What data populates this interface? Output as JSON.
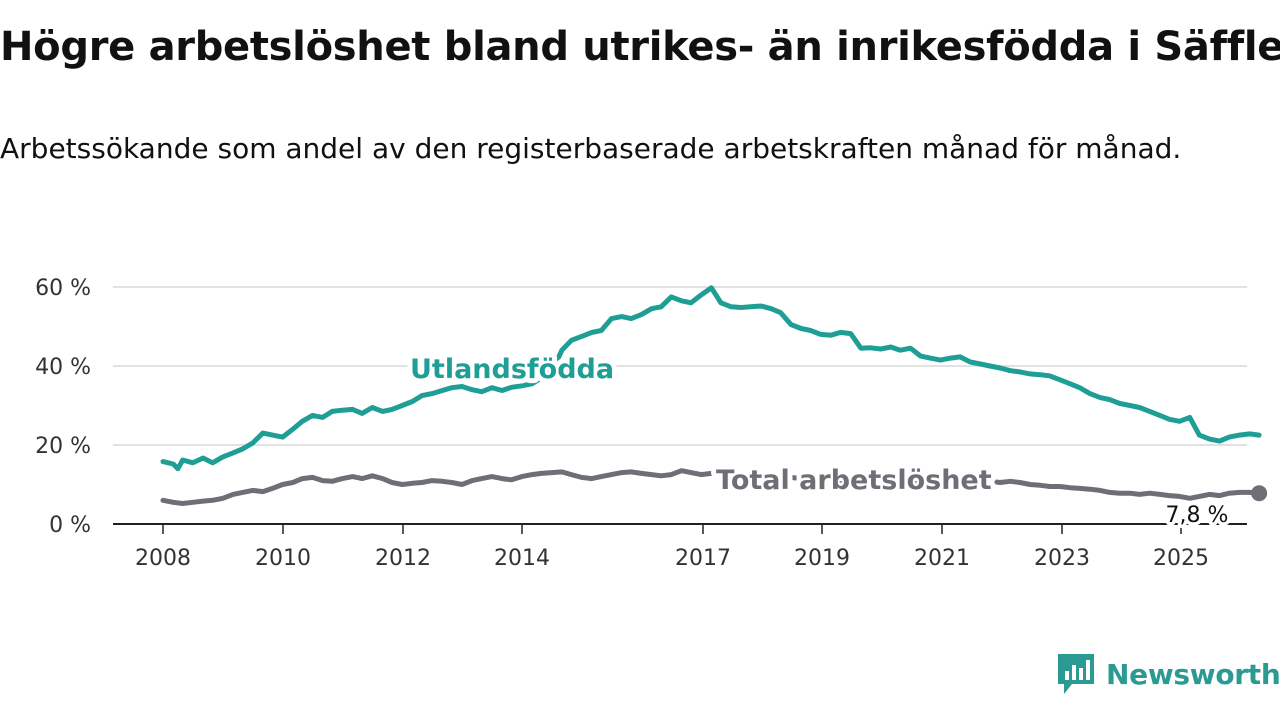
{
  "header": {
    "title": "Högre arbetslöshet bland utrikes- än inrikesfödda i Säffle",
    "subtitle": "Arbetssökande som andel av den registerbaserade arbetskraften månad för månad."
  },
  "brand": {
    "name": "Newsworthy",
    "icon": "newsworthy-logo-icon"
  },
  "colors": {
    "utlandsfodda": "#1f9e96",
    "total": "#6e6e76",
    "grid": "#d9d9d9",
    "axis": "#222222"
  },
  "chart_data": {
    "type": "line",
    "x_ticks": [
      "2008",
      "2010",
      "2012",
      "2014",
      "2017",
      "2019",
      "2021",
      "2023",
      "2025"
    ],
    "y_ticks": [
      "0 %",
      "20 %",
      "40 %",
      "60 %"
    ],
    "ylim": [
      0,
      60
    ],
    "xlim": [
      2007.6,
      2026.5
    ],
    "grid": true,
    "series": [
      {
        "name": "Utlandsfödda",
        "color": "#1f9e96",
        "points": [
          [
            2008.0,
            15.8
          ],
          [
            2008.17,
            15.2
          ],
          [
            2008.25,
            14.0
          ],
          [
            2008.33,
            16.2
          ],
          [
            2008.5,
            15.5
          ],
          [
            2008.67,
            16.7
          ],
          [
            2008.83,
            15.5
          ],
          [
            2009.0,
            17.0
          ],
          [
            2009.17,
            18.0
          ],
          [
            2009.33,
            19.0
          ],
          [
            2009.5,
            20.5
          ],
          [
            2009.67,
            23.0
          ],
          [
            2009.83,
            22.5
          ],
          [
            2010.0,
            22.0
          ],
          [
            2010.17,
            24.0
          ],
          [
            2010.33,
            26.0
          ],
          [
            2010.5,
            27.5
          ],
          [
            2010.67,
            27.0
          ],
          [
            2010.83,
            28.5
          ],
          [
            2011.0,
            28.8
          ],
          [
            2011.17,
            29.0
          ],
          [
            2011.33,
            28.0
          ],
          [
            2011.5,
            29.5
          ],
          [
            2011.67,
            28.5
          ],
          [
            2011.83,
            29.0
          ],
          [
            2012.0,
            30.0
          ],
          [
            2012.17,
            31.0
          ],
          [
            2012.33,
            32.5
          ],
          [
            2012.5,
            33.0
          ],
          [
            2012.67,
            33.8
          ],
          [
            2012.83,
            34.5
          ],
          [
            2013.0,
            34.8
          ],
          [
            2013.17,
            34.0
          ],
          [
            2013.33,
            33.5
          ],
          [
            2013.5,
            34.5
          ],
          [
            2013.67,
            33.8
          ],
          [
            2013.83,
            34.6
          ],
          [
            2014.0,
            35.0
          ],
          [
            2014.17,
            35.5
          ],
          [
            2014.33,
            37.0
          ],
          [
            2014.5,
            38.5
          ],
          [
            2014.67,
            44.0
          ],
          [
            2014.83,
            46.5
          ],
          [
            2015.0,
            47.5
          ],
          [
            2015.17,
            48.5
          ],
          [
            2015.33,
            49.0
          ],
          [
            2015.5,
            52.0
          ],
          [
            2015.67,
            52.5
          ],
          [
            2015.83,
            52.0
          ],
          [
            2016.0,
            53.0
          ],
          [
            2016.17,
            54.5
          ],
          [
            2016.33,
            55.0
          ],
          [
            2016.5,
            57.5
          ],
          [
            2016.67,
            56.5
          ],
          [
            2016.83,
            56.0
          ],
          [
            2017.0,
            58.0
          ],
          [
            2017.17,
            59.8
          ],
          [
            2017.33,
            56.0
          ],
          [
            2017.5,
            55.0
          ],
          [
            2017.67,
            54.8
          ],
          [
            2017.83,
            55.0
          ],
          [
            2018.0,
            55.2
          ],
          [
            2018.17,
            54.5
          ],
          [
            2018.33,
            53.5
          ],
          [
            2018.5,
            50.5
          ],
          [
            2018.67,
            49.5
          ],
          [
            2018.83,
            49.0
          ],
          [
            2019.0,
            48.0
          ],
          [
            2019.17,
            47.8
          ],
          [
            2019.33,
            48.5
          ],
          [
            2019.5,
            48.2
          ],
          [
            2019.67,
            44.5
          ],
          [
            2019.83,
            44.6
          ],
          [
            2020.0,
            44.3
          ],
          [
            2020.17,
            44.8
          ],
          [
            2020.33,
            44.0
          ],
          [
            2020.5,
            44.5
          ],
          [
            2020.67,
            42.5
          ],
          [
            2020.83,
            42.0
          ],
          [
            2021.0,
            41.5
          ],
          [
            2021.17,
            42.0
          ],
          [
            2021.33,
            42.3
          ],
          [
            2021.5,
            41.0
          ],
          [
            2021.67,
            40.5
          ],
          [
            2021.83,
            40.0
          ],
          [
            2022.0,
            39.5
          ],
          [
            2022.17,
            38.8
          ],
          [
            2022.33,
            38.5
          ],
          [
            2022.5,
            38.0
          ],
          [
            2022.67,
            37.8
          ],
          [
            2022.83,
            37.5
          ],
          [
            2023.0,
            36.5
          ],
          [
            2023.17,
            35.5
          ],
          [
            2023.33,
            34.5
          ],
          [
            2023.5,
            33.0
          ],
          [
            2023.67,
            32.0
          ],
          [
            2023.83,
            31.5
          ],
          [
            2024.0,
            30.5
          ],
          [
            2024.17,
            30.0
          ],
          [
            2024.33,
            29.5
          ],
          [
            2024.5,
            28.5
          ],
          [
            2024.67,
            27.5
          ],
          [
            2024.83,
            26.5
          ],
          [
            2025.0,
            26.0
          ],
          [
            2025.17,
            27.0
          ],
          [
            2025.33,
            22.5
          ],
          [
            2025.5,
            21.5
          ],
          [
            2025.67,
            21.0
          ],
          [
            2025.83,
            22.0
          ],
          [
            2026.0,
            22.5
          ],
          [
            2026.17,
            22.8
          ],
          [
            2026.33,
            22.5
          ]
        ]
      },
      {
        "name": "Total arbetslöshet",
        "color": "#6e6e76",
        "points": [
          [
            2008.0,
            6.0
          ],
          [
            2008.17,
            5.5
          ],
          [
            2008.33,
            5.2
          ],
          [
            2008.5,
            5.5
          ],
          [
            2008.67,
            5.8
          ],
          [
            2008.83,
            6.0
          ],
          [
            2009.0,
            6.5
          ],
          [
            2009.17,
            7.5
          ],
          [
            2009.33,
            8.0
          ],
          [
            2009.5,
            8.5
          ],
          [
            2009.67,
            8.2
          ],
          [
            2009.83,
            9.0
          ],
          [
            2010.0,
            10.0
          ],
          [
            2010.17,
            10.5
          ],
          [
            2010.33,
            11.5
          ],
          [
            2010.5,
            11.8
          ],
          [
            2010.67,
            11.0
          ],
          [
            2010.83,
            10.8
          ],
          [
            2011.0,
            11.5
          ],
          [
            2011.17,
            12.0
          ],
          [
            2011.33,
            11.5
          ],
          [
            2011.5,
            12.2
          ],
          [
            2011.67,
            11.5
          ],
          [
            2011.83,
            10.5
          ],
          [
            2012.0,
            10.0
          ],
          [
            2012.17,
            10.3
          ],
          [
            2012.33,
            10.5
          ],
          [
            2012.5,
            11.0
          ],
          [
            2012.67,
            10.8
          ],
          [
            2012.83,
            10.5
          ],
          [
            2013.0,
            10.0
          ],
          [
            2013.17,
            11.0
          ],
          [
            2013.33,
            11.5
          ],
          [
            2013.5,
            12.0
          ],
          [
            2013.67,
            11.5
          ],
          [
            2013.83,
            11.2
          ],
          [
            2014.0,
            12.0
          ],
          [
            2014.17,
            12.5
          ],
          [
            2014.33,
            12.8
          ],
          [
            2014.5,
            13.0
          ],
          [
            2014.67,
            13.2
          ],
          [
            2014.83,
            12.5
          ],
          [
            2015.0,
            11.8
          ],
          [
            2015.17,
            11.5
          ],
          [
            2015.33,
            12.0
          ],
          [
            2015.5,
            12.5
          ],
          [
            2015.67,
            13.0
          ],
          [
            2015.83,
            13.2
          ],
          [
            2016.0,
            12.8
          ],
          [
            2016.17,
            12.5
          ],
          [
            2016.33,
            12.2
          ],
          [
            2016.5,
            12.5
          ],
          [
            2016.67,
            13.5
          ],
          [
            2016.83,
            13.0
          ],
          [
            2017.0,
            12.5
          ],
          [
            2017.17,
            12.8
          ],
          [
            2017.33,
            13.2
          ],
          [
            2017.5,
            13.0
          ],
          [
            2017.67,
            12.8
          ],
          [
            2017.83,
            12.5
          ],
          [
            2018.0,
            12.2
          ],
          [
            2018.17,
            12.0
          ],
          [
            2018.33,
            12.0
          ],
          [
            2018.5,
            11.8
          ],
          [
            2018.67,
            11.5
          ],
          [
            2018.83,
            11.5
          ],
          [
            2019.0,
            11.2
          ],
          [
            2019.17,
            11.0
          ],
          [
            2019.33,
            11.0
          ],
          [
            2019.5,
            10.8
          ],
          [
            2019.67,
            10.8
          ],
          [
            2019.83,
            10.5
          ],
          [
            2020.0,
            10.5
          ],
          [
            2020.17,
            10.8
          ],
          [
            2020.33,
            11.0
          ],
          [
            2020.5,
            11.2
          ],
          [
            2020.67,
            11.0
          ],
          [
            2020.83,
            10.8
          ],
          [
            2021.0,
            10.8
          ],
          [
            2021.17,
            11.0
          ],
          [
            2021.33,
            11.0
          ],
          [
            2021.5,
            10.8
          ],
          [
            2021.67,
            10.8
          ],
          [
            2021.83,
            10.8
          ],
          [
            2022.0,
            10.5
          ],
          [
            2022.17,
            10.8
          ],
          [
            2022.33,
            10.5
          ],
          [
            2022.5,
            10.0
          ],
          [
            2022.67,
            9.8
          ],
          [
            2022.83,
            9.5
          ],
          [
            2023.0,
            9.5
          ],
          [
            2023.17,
            9.2
          ],
          [
            2023.33,
            9.0
          ],
          [
            2023.5,
            8.8
          ],
          [
            2023.67,
            8.5
          ],
          [
            2023.83,
            8.0
          ],
          [
            2024.0,
            7.8
          ],
          [
            2024.17,
            7.8
          ],
          [
            2024.33,
            7.5
          ],
          [
            2024.5,
            7.8
          ],
          [
            2024.67,
            7.5
          ],
          [
            2024.83,
            7.2
          ],
          [
            2025.0,
            7.0
          ],
          [
            2025.17,
            6.5
          ],
          [
            2025.33,
            7.0
          ],
          [
            2025.5,
            7.5
          ],
          [
            2025.67,
            7.2
          ],
          [
            2025.83,
            7.8
          ],
          [
            2026.0,
            8.0
          ],
          [
            2026.17,
            8.0
          ],
          [
            2026.33,
            7.8
          ]
        ]
      }
    ],
    "series_labels": [
      "Utlandsfödda",
      "Total arbetslöshet"
    ],
    "end_value_label": "7,8 %"
  }
}
